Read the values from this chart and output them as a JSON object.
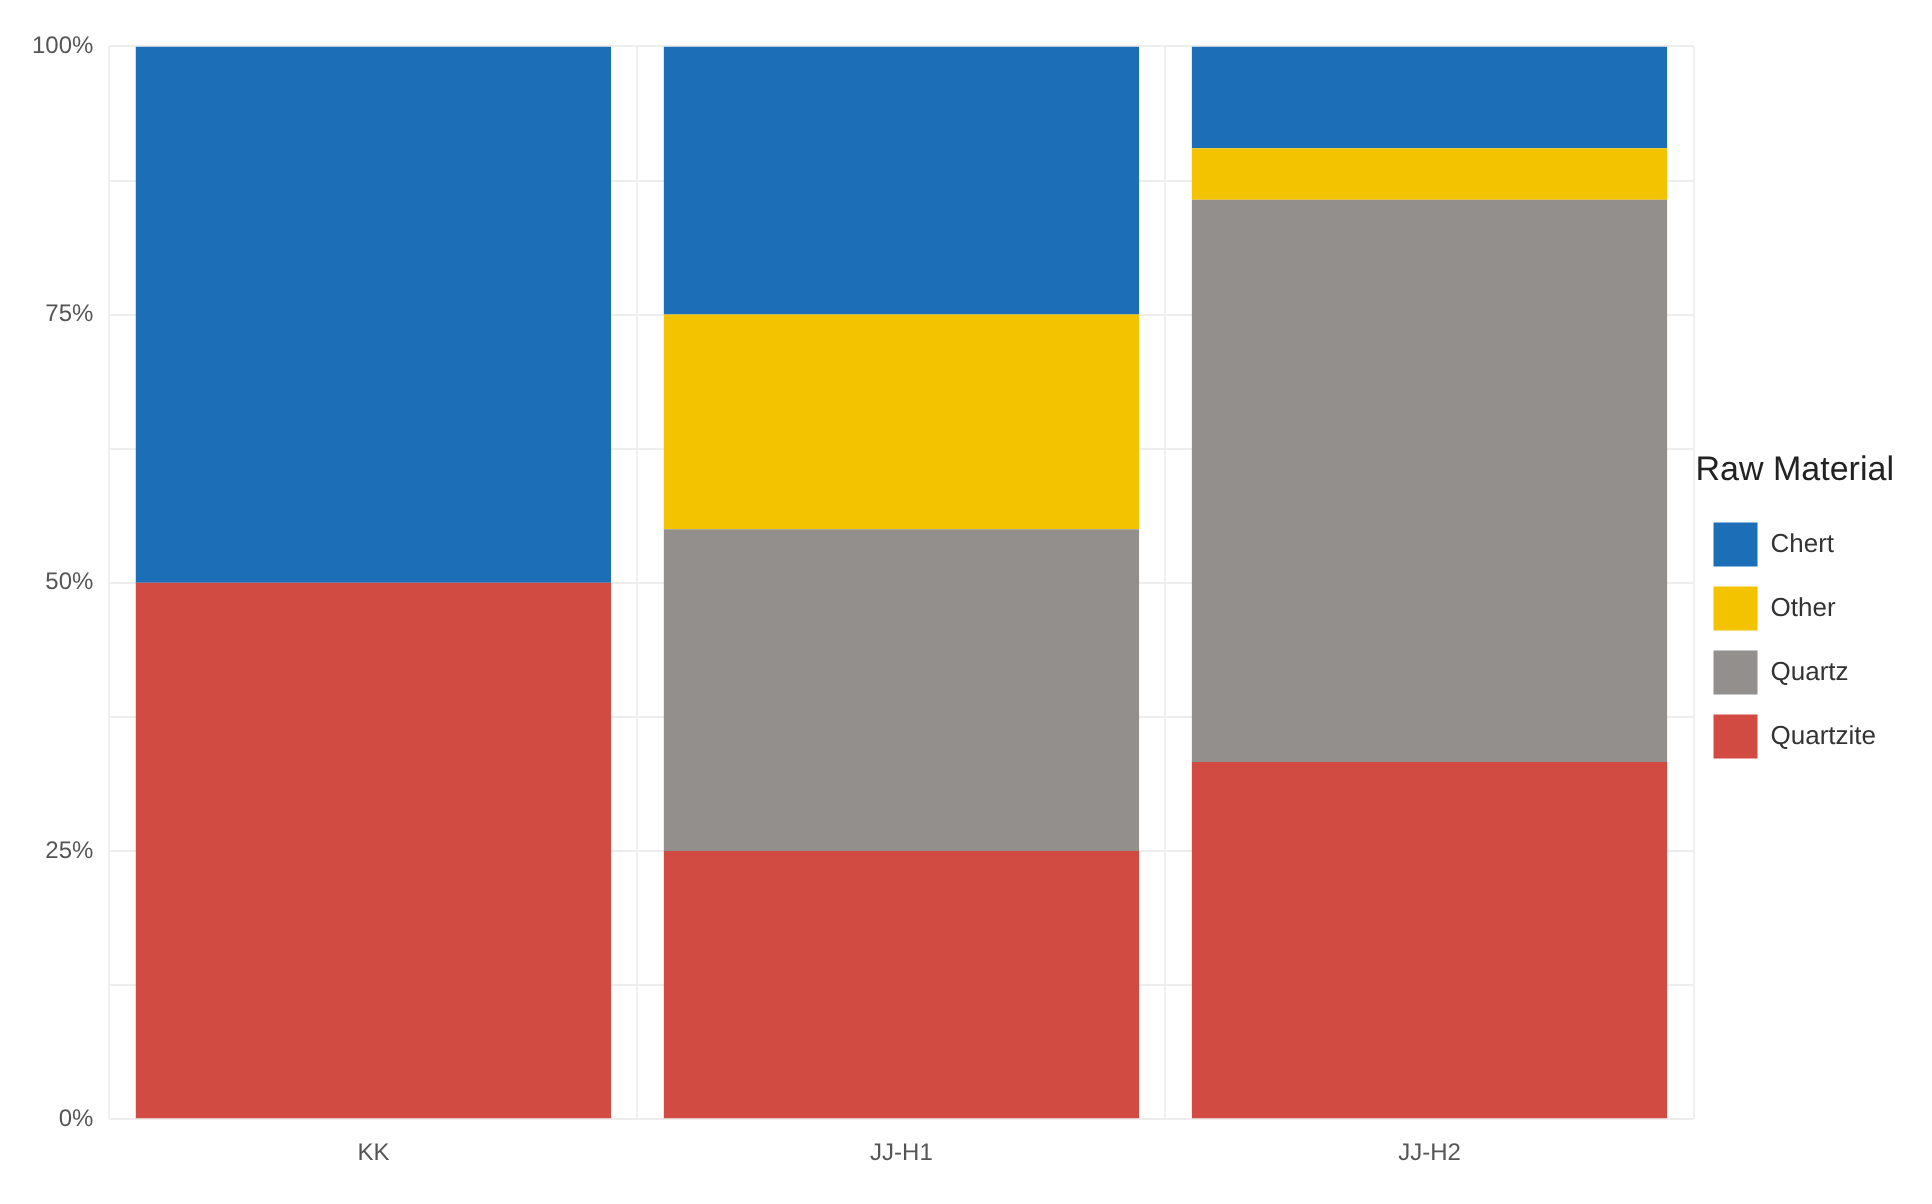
{
  "chart_data": {
    "type": "bar",
    "stacked": true,
    "categories": [
      "KK",
      "JJ-H1",
      "JJ-H2"
    ],
    "series": [
      {
        "name": "Quartzite",
        "color": "#d24b43",
        "values": [
          50,
          25,
          33.3
        ]
      },
      {
        "name": "Quartz",
        "color": "#938f8d",
        "values": [
          0,
          30,
          52.4
        ]
      },
      {
        "name": "Other",
        "color": "#f3c300",
        "values": [
          0,
          20,
          4.8
        ]
      },
      {
        "name": "Chert",
        "color": "#1c6fb6",
        "values": [
          50,
          25,
          9.5
        ]
      }
    ],
    "ylim": [
      0,
      100
    ],
    "yticks": [
      {
        "value": 0,
        "label": "0%"
      },
      {
        "value": 12.5,
        "label": null
      },
      {
        "value": 25,
        "label": "25%"
      },
      {
        "value": 37.5,
        "label": null
      },
      {
        "value": 50,
        "label": "50%"
      },
      {
        "value": 62.5,
        "label": null
      },
      {
        "value": 75,
        "label": "75%"
      },
      {
        "value": 87.5,
        "label": null
      },
      {
        "value": 100,
        "label": "100%"
      }
    ],
    "grid": true,
    "legend": "right",
    "legend_title": "Raw Material"
  }
}
